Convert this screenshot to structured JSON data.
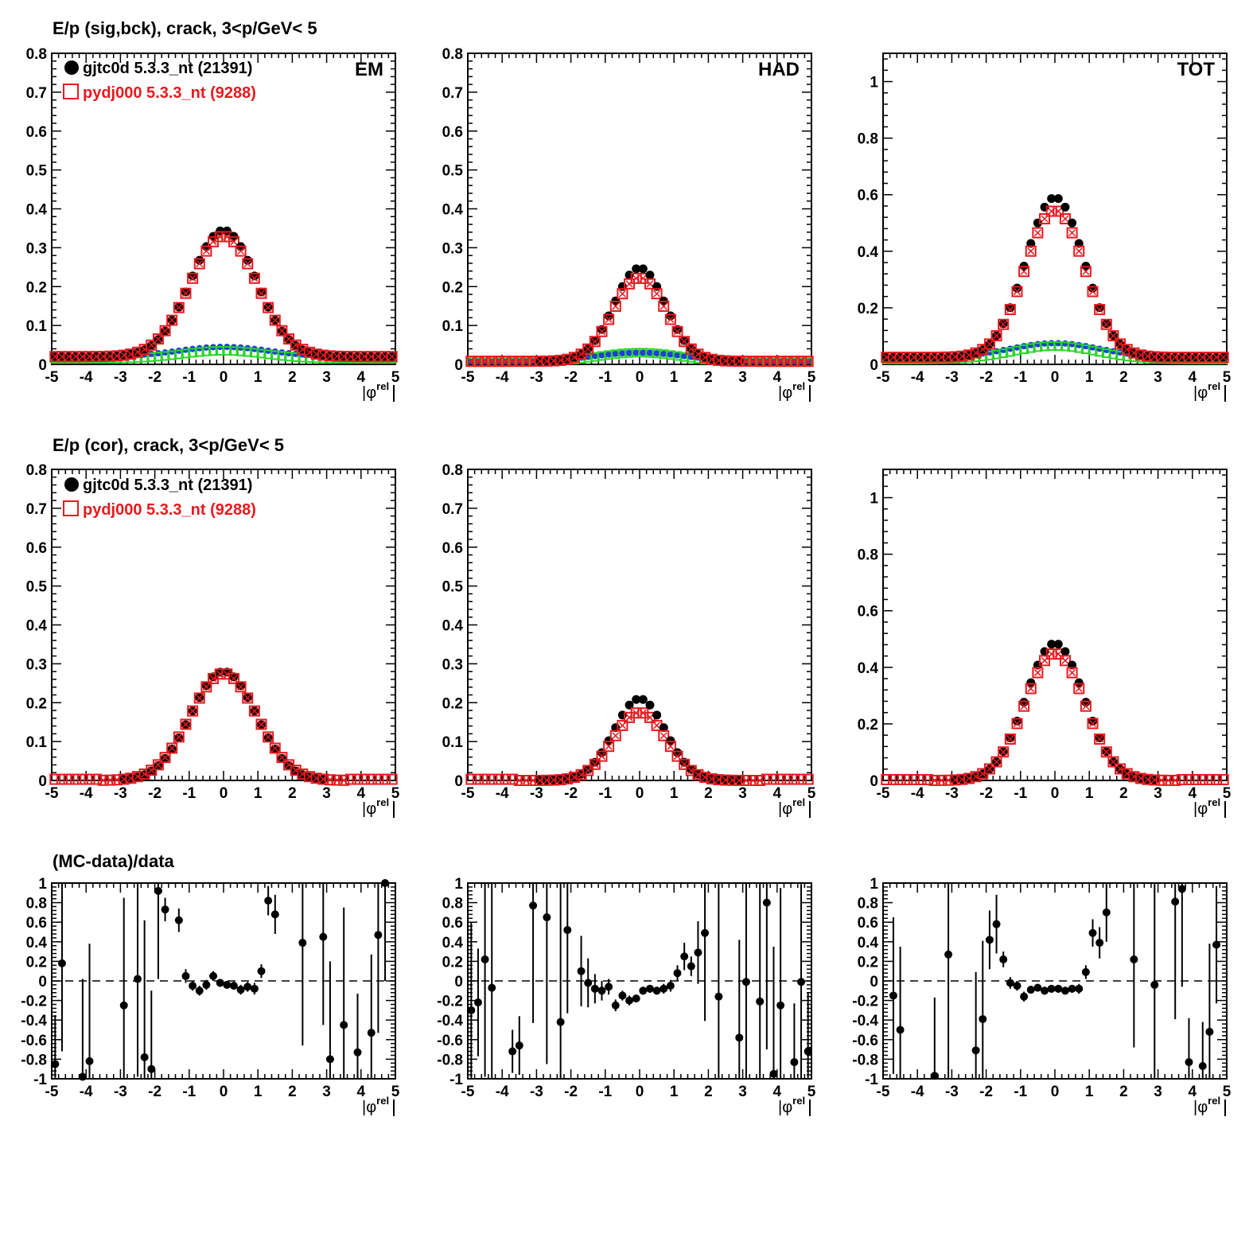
{
  "row_titles": [
    "E/p (sig,bck), crack,  3<p/GeV< 5",
    "E/p (cor), crack,  3<p/GeV< 5",
    "(MC-data)/data"
  ],
  "legend": [
    {
      "label": "gjtc0d 5.3.3_nt (21391)",
      "color": "#000000",
      "marker": "filled-circle"
    },
    {
      "label": "pydj000 5.3.3_nt (9288)",
      "color": "#e8191e",
      "marker": "open-square"
    }
  ],
  "axis_label": "|φ^rel|",
  "colors": {
    "data": "#000000",
    "mc": "#e8191e",
    "bck_data": "#1f3fd6",
    "bck_mc": "#29d629"
  },
  "chart_data": [
    {
      "type": "scatter",
      "panel": "top-EM",
      "tag": "EM",
      "xlim": [
        -5,
        5
      ],
      "ylim": [
        0,
        0.8
      ],
      "yticks": [
        0,
        0.1,
        0.2,
        0.3,
        0.4,
        0.5,
        0.6,
        0.7,
        0.8
      ],
      "xticks": [
        -5,
        -4,
        -3,
        -2,
        -1,
        0,
        1,
        2,
        3,
        4,
        5
      ],
      "signal": {
        "data_peak": 0.325,
        "mc_peak": 0.31,
        "width": 0.95
      },
      "background": {
        "data_center": 0.045,
        "mc_center": 0.035,
        "tail": 0.02
      },
      "series": [
        {
          "name": "gjtc0d 5.3.3_nt (21391)",
          "style": "data"
        },
        {
          "name": "pydj000 5.3.3_nt (9288)",
          "style": "mc"
        }
      ]
    },
    {
      "type": "scatter",
      "panel": "top-HAD",
      "tag": "HAD",
      "xlim": [
        -5,
        5
      ],
      "ylim": [
        0,
        0.8
      ],
      "yticks": [
        0,
        0.1,
        0.2,
        0.3,
        0.4,
        0.5,
        0.6,
        0.7,
        0.8
      ],
      "xticks": [
        -5,
        -4,
        -3,
        -2,
        -1,
        0,
        1,
        2,
        3,
        4,
        5
      ],
      "signal": {
        "data_peak": 0.24,
        "mc_peak": 0.215,
        "width": 0.75
      },
      "background": {
        "data_center": 0.03,
        "mc_center": 0.03,
        "tail": 0.008
      },
      "series": [
        {
          "name": "gjtc0d 5.3.3_nt (21391)",
          "style": "data"
        },
        {
          "name": "pydj000 5.3.3_nt (9288)",
          "style": "mc"
        }
      ]
    },
    {
      "type": "scatter",
      "panel": "top-TOT",
      "tag": "TOT",
      "xlim": [
        -5,
        5
      ],
      "ylim": [
        0,
        1.1
      ],
      "yticks": [
        0,
        0.2,
        0.4,
        0.6,
        0.8,
        1
      ],
      "xticks": [
        -5,
        -4,
        -3,
        -2,
        -1,
        0,
        1,
        2,
        3,
        4,
        5
      ],
      "signal": {
        "data_peak": 0.565,
        "mc_peak": 0.52,
        "width": 0.85
      },
      "background": {
        "data_center": 0.075,
        "mc_center": 0.065,
        "tail": 0.025
      },
      "series": [
        {
          "name": "gjtc0d 5.3.3_nt (21391)",
          "style": "data"
        },
        {
          "name": "pydj000 5.3.3_nt (9288)",
          "style": "mc"
        }
      ]
    },
    {
      "type": "scatter",
      "panel": "mid-EM",
      "tag": "",
      "xlim": [
        -5,
        5
      ],
      "ylim": [
        0,
        0.8
      ],
      "yticks": [
        0,
        0.1,
        0.2,
        0.3,
        0.4,
        0.5,
        0.6,
        0.7,
        0.8
      ],
      "xticks": [
        -5,
        -4,
        -3,
        -2,
        -1,
        0,
        1,
        2,
        3,
        4,
        5
      ],
      "signal": {
        "data_peak": 0.28,
        "mc_peak": 0.275,
        "width": 0.95
      },
      "series": [
        {
          "name": "gjtc0d 5.3.3_nt (21391)",
          "style": "data"
        },
        {
          "name": "pydj000 5.3.3_nt (9288)",
          "style": "mc"
        }
      ]
    },
    {
      "type": "scatter",
      "panel": "mid-HAD",
      "tag": "",
      "xlim": [
        -5,
        5
      ],
      "ylim": [
        0,
        0.8
      ],
      "yticks": [
        0,
        0.1,
        0.2,
        0.3,
        0.4,
        0.5,
        0.6,
        0.7,
        0.8
      ],
      "xticks": [
        -5,
        -4,
        -3,
        -2,
        -1,
        0,
        1,
        2,
        3,
        4,
        5
      ],
      "signal": {
        "data_peak": 0.21,
        "mc_peak": 0.175,
        "width": 0.75
      },
      "series": [
        {
          "name": "gjtc0d 5.3.3_nt (21391)",
          "style": "data"
        },
        {
          "name": "pydj000 5.3.3_nt (9288)",
          "style": "mc"
        }
      ]
    },
    {
      "type": "scatter",
      "panel": "mid-TOT",
      "tag": "",
      "xlim": [
        -5,
        5
      ],
      "ylim": [
        0,
        1.1
      ],
      "yticks": [
        0,
        0.2,
        0.4,
        0.6,
        0.8,
        1
      ],
      "xticks": [
        -5,
        -4,
        -3,
        -2,
        -1,
        0,
        1,
        2,
        3,
        4,
        5
      ],
      "signal": {
        "data_peak": 0.485,
        "mc_peak": 0.45,
        "width": 0.85
      },
      "series": [
        {
          "name": "gjtc0d 5.3.3_nt (21391)",
          "style": "data"
        },
        {
          "name": "pydj000 5.3.3_nt (9288)",
          "style": "mc"
        }
      ]
    },
    {
      "type": "scatter",
      "panel": "ratio-EM",
      "xlim": [
        -5,
        5
      ],
      "ylim": [
        -1,
        1
      ],
      "yticks": [
        -1,
        -0.8,
        -0.6,
        -0.4,
        -0.2,
        0,
        0.2,
        0.4,
        0.6,
        0.8,
        1
      ],
      "xticks": [
        -5,
        -4,
        -3,
        -2,
        -1,
        0,
        1,
        2,
        3,
        4,
        5
      ],
      "points": [
        [
          -4.9,
          -0.85,
          0.5
        ],
        [
          -4.7,
          0.18,
          0.9
        ],
        [
          -4.1,
          -0.98,
          1.0
        ],
        [
          -3.9,
          -0.82,
          1.2
        ],
        [
          -2.9,
          -0.25,
          1.1
        ],
        [
          -2.5,
          0.02,
          1.0
        ],
        [
          -2.3,
          -0.78,
          1.4
        ],
        [
          -2.1,
          -0.9,
          0.8
        ],
        [
          -1.9,
          0.92,
          0.9
        ],
        [
          -1.7,
          0.73,
          0.12
        ],
        [
          -1.3,
          0.62,
          0.12
        ],
        [
          -1.1,
          0.05,
          0.07
        ],
        [
          -0.9,
          -0.05,
          0.05
        ],
        [
          -0.7,
          -0.1,
          0.05
        ],
        [
          -0.5,
          -0.04,
          0.05
        ],
        [
          -0.3,
          0.05,
          0.05
        ],
        [
          -0.1,
          -0.02,
          0.04
        ],
        [
          0.1,
          -0.04,
          0.04
        ],
        [
          0.3,
          -0.05,
          0.04
        ],
        [
          0.5,
          -0.09,
          0.05
        ],
        [
          0.7,
          -0.06,
          0.05
        ],
        [
          0.9,
          -0.08,
          0.06
        ],
        [
          1.1,
          0.1,
          0.07
        ],
        [
          1.3,
          0.82,
          0.15
        ],
        [
          1.5,
          0.68,
          0.2
        ],
        [
          2.3,
          0.39,
          1.05
        ],
        [
          2.9,
          0.45,
          0.9
        ],
        [
          3.1,
          -0.8,
          1.0
        ],
        [
          3.5,
          -0.45,
          1.2
        ],
        [
          3.9,
          -0.73,
          0.6
        ],
        [
          4.3,
          -0.53,
          0.8
        ],
        [
          4.5,
          0.47,
          1.0
        ],
        [
          4.7,
          1.0,
          1.0
        ]
      ]
    },
    {
      "type": "scatter",
      "panel": "ratio-HAD",
      "xlim": [
        -5,
        5
      ],
      "ylim": [
        -1,
        1
      ],
      "yticks": [
        -1,
        -0.8,
        -0.6,
        -0.4,
        -0.2,
        0,
        0.2,
        0.4,
        0.6,
        0.8,
        1
      ],
      "xticks": [
        -5,
        -4,
        -3,
        -2,
        -1,
        0,
        1,
        2,
        3,
        4,
        5
      ],
      "points": [
        [
          -4.9,
          -0.3,
          0.9
        ],
        [
          -4.7,
          -0.22,
          0.55
        ],
        [
          -4.5,
          0.22,
          1.2
        ],
        [
          -4.3,
          -0.07,
          1.3
        ],
        [
          -3.7,
          -0.72,
          0.22
        ],
        [
          -3.5,
          -0.66,
          0.3
        ],
        [
          -3.1,
          0.77,
          1.2
        ],
        [
          -2.7,
          0.65,
          1.5
        ],
        [
          -2.3,
          -0.42,
          1.5
        ],
        [
          -2.1,
          0.52,
          0.85
        ],
        [
          -1.7,
          0.1,
          0.36
        ],
        [
          -1.5,
          -0.02,
          0.25
        ],
        [
          -1.3,
          -0.08,
          0.15
        ],
        [
          -1.1,
          -0.1,
          0.1
        ],
        [
          -0.9,
          -0.06,
          0.08
        ],
        [
          -0.7,
          -0.25,
          0.06
        ],
        [
          -0.5,
          -0.15,
          0.05
        ],
        [
          -0.3,
          -0.2,
          0.05
        ],
        [
          -0.1,
          -0.18,
          0.04
        ],
        [
          0.1,
          -0.1,
          0.04
        ],
        [
          0.3,
          -0.08,
          0.04
        ],
        [
          0.5,
          -0.1,
          0.04
        ],
        [
          0.7,
          -0.08,
          0.05
        ],
        [
          0.9,
          -0.05,
          0.06
        ],
        [
          1.1,
          0.08,
          0.08
        ],
        [
          1.3,
          0.25,
          0.14
        ],
        [
          1.5,
          0.15,
          0.1
        ],
        [
          1.7,
          0.29,
          0.32
        ],
        [
          1.9,
          0.49,
          0.9
        ],
        [
          2.3,
          -0.16,
          1.2
        ],
        [
          2.9,
          -0.58,
          1.0
        ],
        [
          3.1,
          -0.01,
          1.5
        ],
        [
          3.5,
          -0.21,
          1.5
        ],
        [
          3.7,
          0.8,
          1.5
        ],
        [
          3.9,
          -0.95,
          1.3
        ],
        [
          4.1,
          -0.25,
          1.2
        ],
        [
          4.5,
          -0.83,
          0.6
        ],
        [
          4.7,
          -0.01,
          1.0
        ],
        [
          4.9,
          -0.72,
          0.6
        ]
      ]
    },
    {
      "type": "scatter",
      "panel": "ratio-TOT",
      "xlim": [
        -5,
        5
      ],
      "ylim": [
        -1,
        1
      ],
      "yticks": [
        -1,
        -0.8,
        -0.6,
        -0.4,
        -0.2,
        0,
        0.2,
        0.4,
        0.6,
        0.8,
        1
      ],
      "xticks": [
        -5,
        -4,
        -3,
        -2,
        -1,
        0,
        1,
        2,
        3,
        4,
        5
      ],
      "points": [
        [
          -4.7,
          -0.15,
          0.8
        ],
        [
          -4.5,
          -0.5,
          0.85
        ],
        [
          -3.5,
          -0.97,
          0.8
        ],
        [
          -3.1,
          0.27,
          1.3
        ],
        [
          -2.3,
          -0.71,
          0.8
        ],
        [
          -2.1,
          -0.39,
          0.8
        ],
        [
          -1.9,
          0.42,
          0.3
        ],
        [
          -1.7,
          0.58,
          0.3
        ],
        [
          -1.5,
          0.22,
          0.08
        ],
        [
          -1.3,
          -0.02,
          0.06
        ],
        [
          -1.1,
          -0.05,
          0.05
        ],
        [
          -0.9,
          -0.16,
          0.05
        ],
        [
          -0.7,
          -0.09,
          0.04
        ],
        [
          -0.5,
          -0.07,
          0.04
        ],
        [
          -0.3,
          -0.1,
          0.04
        ],
        [
          -0.1,
          -0.08,
          0.04
        ],
        [
          0.1,
          -0.08,
          0.04
        ],
        [
          0.3,
          -0.1,
          0.04
        ],
        [
          0.5,
          -0.08,
          0.04
        ],
        [
          0.7,
          -0.08,
          0.05
        ],
        [
          0.9,
          0.09,
          0.07
        ],
        [
          1.1,
          0.49,
          0.14
        ],
        [
          1.3,
          0.39,
          0.16
        ],
        [
          1.5,
          0.7,
          0.3
        ],
        [
          2.3,
          0.22,
          0.9
        ],
        [
          2.9,
          -0.04,
          1.2
        ],
        [
          3.5,
          0.81,
          1.2
        ],
        [
          3.7,
          0.94,
          1.0
        ],
        [
          3.9,
          -0.83,
          0.45
        ],
        [
          4.3,
          -0.87,
          0.45
        ],
        [
          4.5,
          -0.52,
          0.9
        ],
        [
          4.7,
          0.37,
          0.6
        ]
      ]
    }
  ]
}
